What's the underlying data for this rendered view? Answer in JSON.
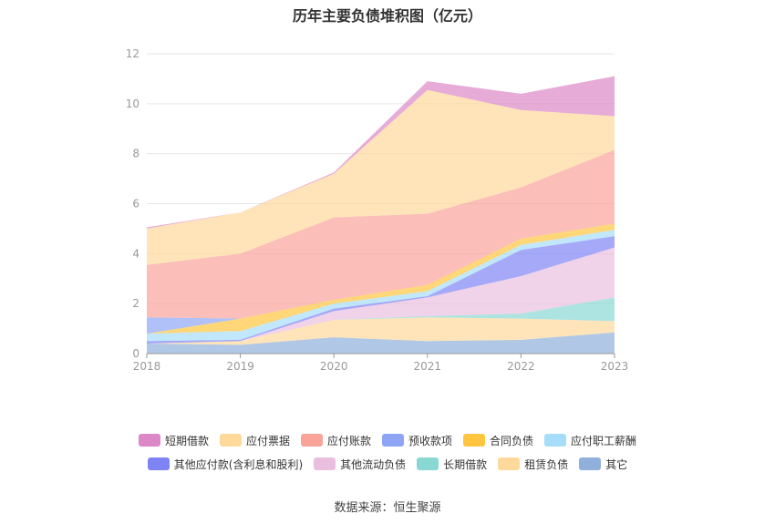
{
  "title": "历年主要负债堆积图（亿元）",
  "source": "数据来源：恒生聚源",
  "chart_data": {
    "type": "area",
    "stacked": true,
    "title": "历年主要负债堆积图（亿元）",
    "categories": [
      "2018",
      "2019",
      "2020",
      "2021",
      "2022",
      "2023"
    ],
    "ylim": [
      0,
      12
    ],
    "yticks": [
      "0",
      "2",
      "4",
      "6",
      "8",
      "10",
      "12"
    ],
    "grid": true,
    "legend_position": "bottom",
    "series": [
      {
        "name": "其它",
        "color": "#8fb0dc",
        "values": [
          0.4,
          0.35,
          0.65,
          0.5,
          0.55,
          0.85
        ]
      },
      {
        "name": "租赁负债",
        "color": "#ffd99b",
        "values": [
          0.0,
          0.15,
          0.7,
          0.95,
          0.85,
          0.45
        ]
      },
      {
        "name": "长期借款",
        "color": "#8ad8d4",
        "values": [
          0.0,
          0.0,
          0.0,
          0.05,
          0.2,
          0.95
        ]
      },
      {
        "name": "其他流动负债",
        "color": "#e9bfdf",
        "values": [
          0.0,
          0.0,
          0.35,
          0.75,
          1.5,
          2.0
        ]
      },
      {
        "name": "其他应付款(含利息和股利)",
        "color": "#7f84f5",
        "values": [
          0.1,
          0.05,
          0.1,
          0.05,
          1.05,
          0.45
        ]
      },
      {
        "name": "应付职工薪酬",
        "color": "#a6ddf8",
        "values": [
          0.3,
          0.35,
          0.2,
          0.2,
          0.2,
          0.25
        ]
      },
      {
        "name": "合同负债",
        "color": "#ffc53f",
        "values": [
          0.0,
          0.5,
          0.15,
          0.25,
          0.25,
          0.25
        ]
      },
      {
        "name": "预收款项",
        "color": "#8ea5f5",
        "values": [
          0.65,
          0.0,
          0.0,
          0.0,
          0.0,
          0.0
        ]
      },
      {
        "name": "应付账款",
        "color": "#f9a39a",
        "values": [
          2.1,
          2.6,
          3.3,
          2.85,
          2.05,
          2.95
        ]
      },
      {
        "name": "应付票据",
        "color": "#ffd99b",
        "values": [
          1.45,
          1.65,
          1.75,
          4.95,
          3.1,
          1.35
        ]
      },
      {
        "name": "短期借款",
        "color": "#dd88c6",
        "values": [
          0.05,
          0.0,
          0.05,
          0.35,
          0.65,
          1.6
        ]
      }
    ],
    "legend_rows": [
      [
        {
          "name": "短期借款",
          "color": "#dd88c6"
        },
        {
          "name": "应付票据",
          "color": "#ffd99b"
        },
        {
          "name": "应付账款",
          "color": "#f9a39a"
        },
        {
          "name": "预收款项",
          "color": "#8ea5f5"
        },
        {
          "name": "合同负债",
          "color": "#ffc53f"
        },
        {
          "name": "应付职工薪酬",
          "color": "#a6ddf8"
        }
      ],
      [
        {
          "name": "其他应付款(含利息和股利)",
          "color": "#7f84f5"
        },
        {
          "name": "其他流动负债",
          "color": "#e9bfdf"
        },
        {
          "name": "长期借款",
          "color": "#8ad8d4"
        },
        {
          "name": "租赁负债",
          "color": "#ffd99b"
        },
        {
          "name": "其它",
          "color": "#8fb0dc"
        }
      ]
    ]
  }
}
